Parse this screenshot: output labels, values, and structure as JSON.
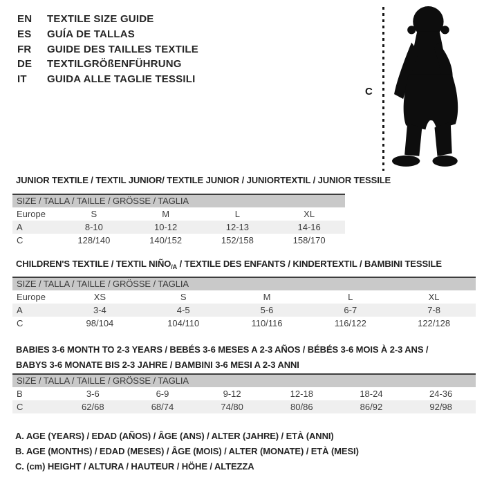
{
  "colors": {
    "background": "#ffffff",
    "header_bar": "#c9c9c9",
    "shaded_row": "#efefef",
    "table_top_border": "#3d3d3d",
    "text": "#222222",
    "silhouette": "#0d0d0d"
  },
  "languages": [
    {
      "code": "EN",
      "label": "TEXTILE SIZE GUIDE"
    },
    {
      "code": "ES",
      "label": "GUÍA DE TALLAS"
    },
    {
      "code": "FR",
      "label": "GUIDE DES TAILLES TEXTILE"
    },
    {
      "code": "DE",
      "label": "TEXTILGRÖßENFÜHRUNG"
    },
    {
      "code": "IT",
      "label": "GUIDA ALLE TAGLIE TESSILI"
    }
  ],
  "figure": {
    "silhouette_icon": "toddler-silhouette-icon",
    "measure_label": "C"
  },
  "tables": [
    {
      "id": "junior",
      "title_lines": [
        [
          {
            "text": "JUNIOR TEXTILE / TEXTIL JUNIOR/ TEXTILE JUNIOR / JUNIORTEXTIL / JUNIOR TESSILE"
          }
        ]
      ],
      "header": "SIZE / TALLA / TAILLE / GRÖSSE / TAGLIA",
      "rows": [
        {
          "label": "Europe",
          "values": [
            "S",
            "M",
            "L",
            "XL"
          ],
          "shaded": false
        },
        {
          "label": "A",
          "values": [
            "8-10",
            "10-12",
            "12-13",
            "14-16"
          ],
          "shaded": true
        },
        {
          "label": "C",
          "values": [
            "128/140",
            "140/152",
            "152/158",
            "158/170"
          ],
          "shaded": false
        }
      ]
    },
    {
      "id": "children",
      "title_lines": [
        [
          {
            "text": "CHILDREN'S TEXTILE / TEXTIL NIÑO"
          },
          {
            "text": "/A",
            "sub": true
          },
          {
            "text": " / TEXTILE DES ENFANTS / KINDERTEXTIL / BAMBINI TESSILE"
          }
        ]
      ],
      "header": "SIZE / TALLA / TAILLE / GRÖSSE / TAGLIA",
      "rows": [
        {
          "label": "Europe",
          "values": [
            "XS",
            "S",
            "M",
            "L",
            "XL"
          ],
          "shaded": false
        },
        {
          "label": "A",
          "values": [
            "3-4",
            "4-5",
            "5-6",
            "6-7",
            "7-8"
          ],
          "shaded": true
        },
        {
          "label": "C",
          "values": [
            "98/104",
            "104/110",
            "110/116",
            "116/122",
            "122/128"
          ],
          "shaded": false
        }
      ]
    },
    {
      "id": "babies",
      "title_lines": [
        [
          {
            "text": "BABIES 3-6 MONTH TO 2-3 YEARS / BEBÉS 3-6 MESES A 2-3 AÑOS / BÉBÉS 3-6 MOIS À 2-3 ANS /"
          }
        ],
        [
          {
            "text": "BABYS 3-6 MONATE BIS 2-3 JAHRE / BAMBINI 3-6 MESI A 2-3 ANNI"
          }
        ]
      ],
      "header": "SIZE / TALLA / TAILLE / GRÖSSE / TAGLIA",
      "rows": [
        {
          "label": "B",
          "values": [
            "3-6",
            "6-9",
            "9-12",
            "12-18",
            "18-24",
            "24-36"
          ],
          "shaded": false
        },
        {
          "label": "C",
          "values": [
            "62/68",
            "68/74",
            "74/80",
            "80/86",
            "86/92",
            "92/98"
          ],
          "shaded": true
        }
      ]
    }
  ],
  "legend": [
    "A. AGE (YEARS) / EDAD (AÑOS) / ÂGE (ANS) / ALTER (JAHRE) / ETÀ (ANNI)",
    "B. AGE (MONTHS) / EDAD (MESES) / ÂGE (MOIS) / ALTER (MONATE) / ETÀ (MESI)",
    "C. (cm) HEIGHT / ALTURA / HAUTEUR / HÖHE / ALTEZZA"
  ]
}
